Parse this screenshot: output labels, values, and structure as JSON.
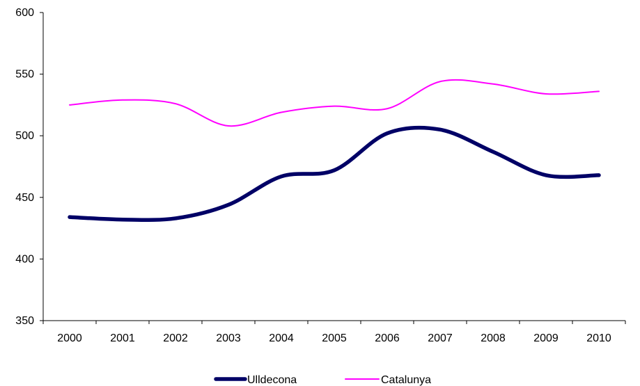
{
  "chart_data": {
    "type": "line",
    "title": "",
    "xlabel": "",
    "ylabel": "",
    "categories": [
      "2000",
      "2001",
      "2002",
      "2003",
      "2004",
      "2005",
      "2006",
      "2007",
      "2008",
      "2009",
      "2010"
    ],
    "ylim": [
      350,
      600
    ],
    "y_ticks": [
      350,
      400,
      450,
      500,
      550,
      600
    ],
    "grid": false,
    "legend_position": "bottom",
    "series": [
      {
        "name": "Ulldecona",
        "color": "#000066",
        "values": [
          434,
          432,
          433,
          444,
          467,
          472,
          502,
          505,
          487,
          468,
          468
        ]
      },
      {
        "name": "Catalunya",
        "color": "#ff00ff",
        "values": [
          525,
          529,
          526,
          508,
          519,
          524,
          522,
          544,
          542,
          534,
          536
        ]
      }
    ]
  }
}
